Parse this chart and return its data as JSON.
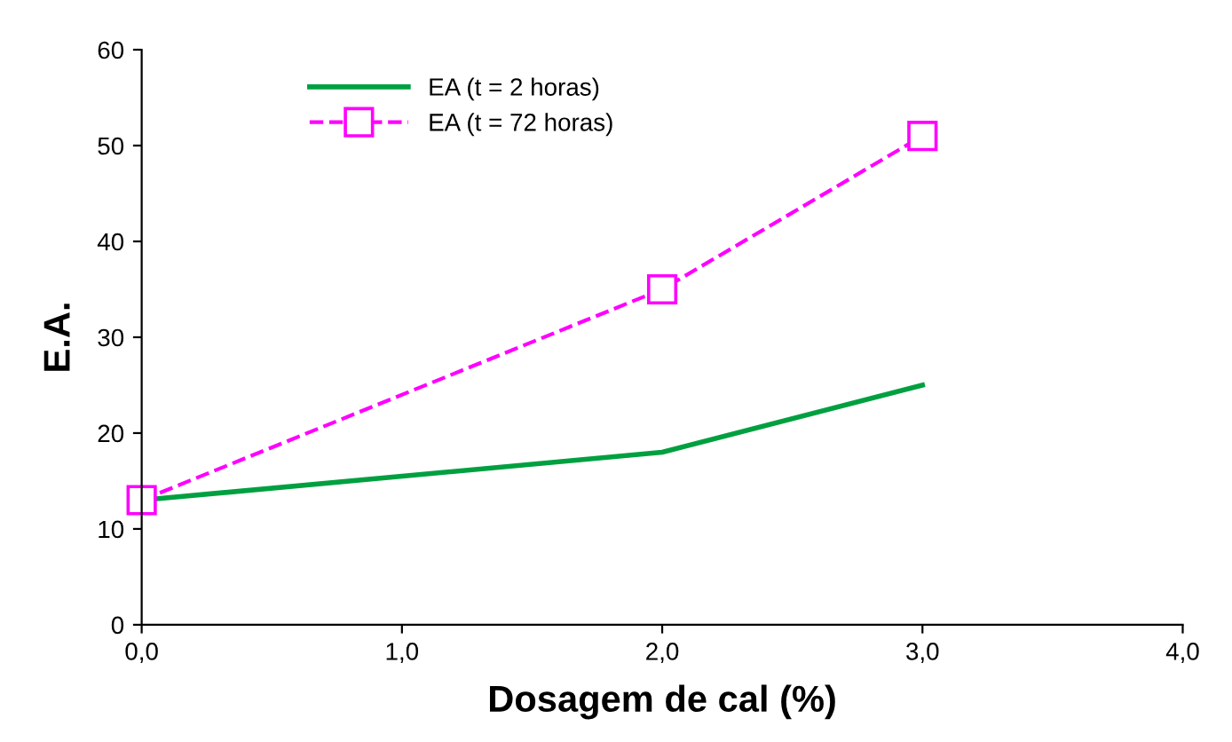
{
  "chart_data": {
    "type": "line",
    "xlabel": "Dosagem de cal (%)",
    "ylabel": "E.A.",
    "x": [
      0,
      2,
      3
    ],
    "series": [
      {
        "name": "EA (t = 2 horas)",
        "color": "#00a040",
        "values": [
          13,
          18,
          25
        ],
        "marker": "none",
        "line_style": "solid"
      },
      {
        "name": "EA (t = 72 horas)",
        "color": "#ff00ff",
        "values": [
          13,
          35,
          51
        ],
        "marker": "square",
        "line_style": "dashed"
      }
    ],
    "xlim": [
      0,
      4
    ],
    "xticks": [
      {
        "value": 0,
        "label": "0,0"
      },
      {
        "value": 1,
        "label": "1,0"
      },
      {
        "value": 2,
        "label": "2,0"
      },
      {
        "value": 3,
        "label": "3,0"
      },
      {
        "value": 4,
        "label": "4,0"
      }
    ],
    "ylim": [
      0,
      60
    ],
    "yticks": [
      0,
      10,
      20,
      30,
      40,
      50,
      60
    ],
    "grid": false,
    "legend": "top left"
  }
}
